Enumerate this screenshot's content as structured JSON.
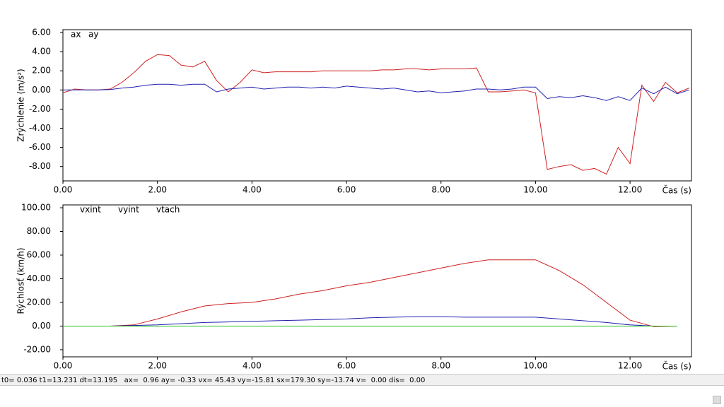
{
  "chart_data": [
    {
      "type": "line",
      "ylabel": "Zrýchlenie (m/s²)",
      "xlabel": "Čas (s)",
      "x": [
        0,
        0.25,
        0.5,
        0.75,
        1,
        1.25,
        1.5,
        1.75,
        2,
        2.25,
        2.5,
        2.75,
        3,
        3.25,
        3.5,
        3.75,
        4,
        4.25,
        4.5,
        4.75,
        5,
        5.25,
        5.5,
        5.75,
        6,
        6.25,
        6.5,
        6.75,
        7,
        7.25,
        7.5,
        7.75,
        8,
        8.25,
        8.5,
        8.75,
        9,
        9.25,
        9.5,
        9.75,
        10,
        10.25,
        10.5,
        10.75,
        11,
        11.25,
        11.5,
        11.75,
        12,
        12.25,
        12.5,
        12.75,
        13,
        13.25
      ],
      "series": [
        {
          "name": "ax",
          "color": "#d02020",
          "values": [
            -0.3,
            0.1,
            0,
            0,
            0.1,
            0.8,
            1.8,
            3.0,
            3.7,
            3.6,
            2.6,
            2.4,
            3.0,
            1.0,
            -0.2,
            0.8,
            2.1,
            1.8,
            1.9,
            1.9,
            1.9,
            1.9,
            2.0,
            2.0,
            2.0,
            2.0,
            2.0,
            2.1,
            2.1,
            2.2,
            2.2,
            2.1,
            2.2,
            2.2,
            2.2,
            2.3,
            -0.2,
            -0.2,
            -0.1,
            0,
            -0.3,
            -8.3,
            -8.0,
            -7.8,
            -8.4,
            -8.2,
            -8.8,
            -6.0,
            -7.7,
            0.5,
            -1.2,
            0.8,
            -0.3,
            0.2
          ]
        },
        {
          "name": "ay",
          "color": "#2020b0",
          "values": [
            0,
            0,
            0,
            0,
            0.05,
            0.2,
            0.3,
            0.5,
            0.6,
            0.6,
            0.5,
            0.6,
            0.6,
            -0.2,
            0.1,
            0.2,
            0.3,
            0.1,
            0.2,
            0.3,
            0.3,
            0.2,
            0.3,
            0.2,
            0.4,
            0.3,
            0.2,
            0.1,
            0.2,
            0,
            -0.2,
            -0.1,
            -0.3,
            -0.2,
            -0.1,
            0.1,
            0.1,
            0,
            0.1,
            0.3,
            0.3,
            -0.9,
            -0.7,
            -0.8,
            -0.6,
            -0.8,
            -1.1,
            -0.7,
            -1.1,
            0.2,
            -0.4,
            0.3,
            -0.4,
            0
          ]
        }
      ],
      "xlim": [
        0,
        13.3
      ],
      "ylim": [
        -9.5,
        6.3
      ],
      "xticks": [
        {
          "value": 0,
          "label": "0.00"
        },
        {
          "value": 2,
          "label": "2.00"
        },
        {
          "value": 4,
          "label": "4.00"
        },
        {
          "value": 6,
          "label": "6.00"
        },
        {
          "value": 8,
          "label": "8.00"
        },
        {
          "value": 10,
          "label": "10.00"
        },
        {
          "value": 12,
          "label": "12.00"
        }
      ],
      "yticks": [
        {
          "value": 6,
          "label": "6.00"
        },
        {
          "value": 4,
          "label": "4.00"
        },
        {
          "value": 2,
          "label": "2.00"
        },
        {
          "value": 0,
          "label": "0.00"
        },
        {
          "value": -2,
          "label": "-2.00"
        },
        {
          "value": -4,
          "label": "-4.00"
        },
        {
          "value": -6,
          "label": "-6.00"
        },
        {
          "value": -8,
          "label": "-8.00"
        }
      ],
      "grid": false
    },
    {
      "type": "line",
      "ylabel": "Rýchlosť (km/h)",
      "xlabel": "Čas (s)",
      "x": [
        0,
        0.5,
        1,
        1.5,
        2,
        2.5,
        3,
        3.5,
        4,
        4.5,
        5,
        5.5,
        6,
        6.5,
        7,
        7.5,
        8,
        8.5,
        9,
        9.5,
        10,
        10.5,
        11,
        11.5,
        12,
        12.5,
        13
      ],
      "series": [
        {
          "name": "vxint",
          "color": "#d02020",
          "values": [
            0,
            0,
            0,
            1,
            6,
            12,
            17,
            19,
            20,
            23,
            27,
            30,
            34,
            37,
            41,
            45,
            49,
            53,
            56,
            56,
            56,
            47,
            35,
            20,
            5,
            -0.5,
            0
          ]
        },
        {
          "name": "vyint",
          "color": "#2020b0",
          "values": [
            0,
            0,
            0,
            0.5,
            1,
            2,
            3,
            3.5,
            4,
            4.5,
            5,
            5.5,
            6,
            7,
            7.5,
            8,
            8,
            7.5,
            7.5,
            7.5,
            7.5,
            6,
            4.5,
            3,
            1,
            0,
            0
          ]
        },
        {
          "name": "vtach",
          "color": "#20c020",
          "values": [
            0,
            0,
            0,
            0,
            0,
            0,
            0,
            0,
            0,
            0,
            0,
            0,
            0,
            0,
            0,
            0,
            0,
            0,
            0,
            0,
            0,
            0,
            0,
            0,
            0,
            0,
            0
          ]
        }
      ],
      "xlim": [
        0,
        13.3
      ],
      "ylim": [
        -26,
        102.4
      ],
      "xticks": [
        {
          "value": 0,
          "label": "0.00"
        },
        {
          "value": 2,
          "label": "2.00"
        },
        {
          "value": 4,
          "label": "4.00"
        },
        {
          "value": 6,
          "label": "6.00"
        },
        {
          "value": 8,
          "label": "8.00"
        },
        {
          "value": 10,
          "label": "10.00"
        },
        {
          "value": 12,
          "label": "12.00"
        }
      ],
      "yticks": [
        {
          "value": 100,
          "label": "100.00"
        },
        {
          "value": 80,
          "label": "80.00"
        },
        {
          "value": 60,
          "label": "60.00"
        },
        {
          "value": 40,
          "label": "40.00"
        },
        {
          "value": 20,
          "label": "20.00"
        },
        {
          "value": 0,
          "label": "0.00"
        },
        {
          "value": -20,
          "label": "-20.00"
        }
      ],
      "grid": false
    }
  ],
  "status_bar": "t0= 0.036 t1=13.231 dt=13.195   ax=  0.96 ay= -0.33 vx= 45.43 vy=-15.81 sx=179.30 sy=-13.74 v=  0.00 dis=  0.00"
}
